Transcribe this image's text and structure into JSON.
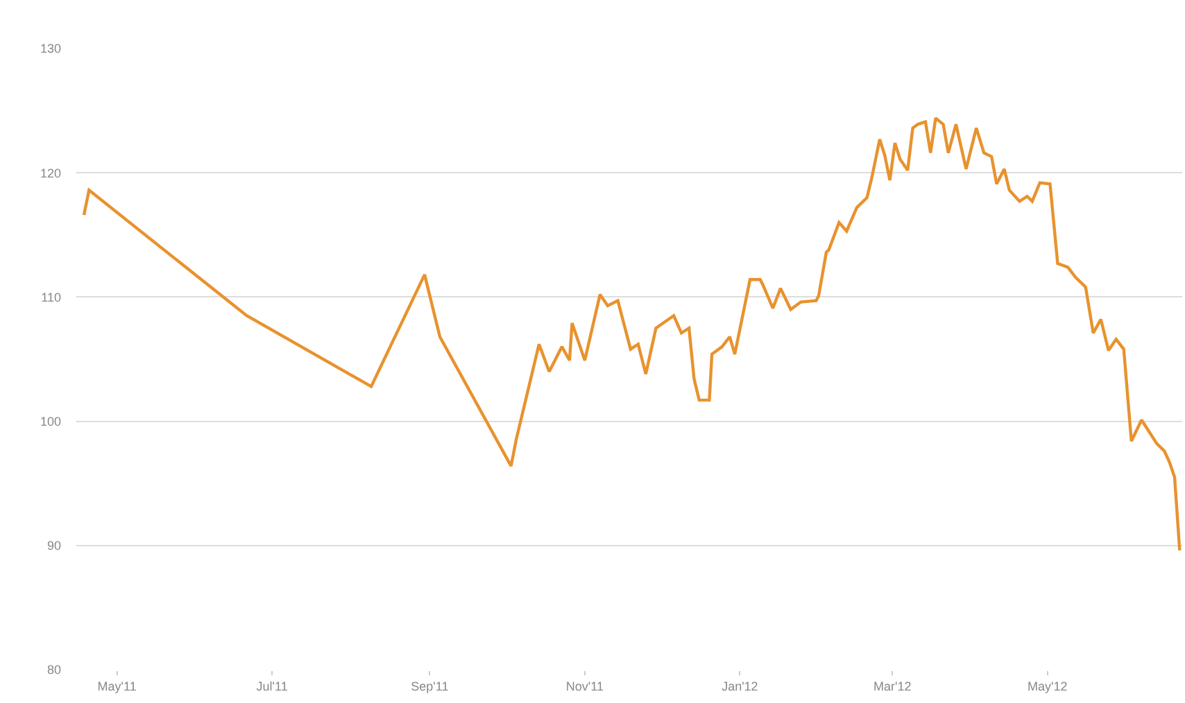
{
  "chart_data": {
    "type": "line",
    "color": "#e8922e",
    "grid": "y",
    "marker": "none",
    "line_style": "solid",
    "x": [
      "2011-04-18",
      "2011-04-20",
      "2011-06-21",
      "2011-08-09",
      "2011-08-30",
      "2011-09-05",
      "2011-10-03",
      "2011-10-05",
      "2011-10-14",
      "2011-10-18",
      "2011-10-23",
      "2011-10-26",
      "2011-10-27",
      "2011-11-01",
      "2011-11-07",
      "2011-11-10",
      "2011-11-14",
      "2011-11-19",
      "2011-11-22",
      "2011-11-25",
      "2011-11-29",
      "2011-12-06",
      "2011-12-09",
      "2011-12-12",
      "2011-12-14",
      "2011-12-16",
      "2011-12-20",
      "2011-12-21",
      "2011-12-25",
      "2011-12-28",
      "2011-12-30",
      "2012-01-05",
      "2012-01-09",
      "2012-01-10",
      "2012-01-14",
      "2012-01-17",
      "2012-01-21",
      "2012-01-25",
      "2012-01-31",
      "2012-02-01",
      "2012-02-04",
      "2012-02-05",
      "2012-02-09",
      "2012-02-12",
      "2012-02-16",
      "2012-02-20",
      "2012-02-22",
      "2012-02-25",
      "2012-02-27",
      "2012-02-29",
      "2012-03-02",
      "2012-03-04",
      "2012-03-07",
      "2012-03-09",
      "2012-03-11",
      "2012-03-14",
      "2012-03-16",
      "2012-03-18",
      "2012-03-21",
      "2012-03-23",
      "2012-03-26",
      "2012-03-30",
      "2012-04-03",
      "2012-04-06",
      "2012-04-09",
      "2012-04-11",
      "2012-04-14",
      "2012-04-16",
      "2012-04-20",
      "2012-04-23",
      "2012-04-25",
      "2012-04-28",
      "2012-05-02",
      "2012-05-05",
      "2012-05-09",
      "2012-05-12",
      "2012-05-16",
      "2012-05-19",
      "2012-05-22",
      "2012-05-25",
      "2012-05-28",
      "2012-05-31",
      "2012-06-03",
      "2012-06-07",
      "2012-06-13",
      "2012-06-16",
      "2012-06-18",
      "2012-06-20",
      "2012-06-22"
    ],
    "values": [
      116.6,
      118.6,
      108.5,
      102.8,
      111.8,
      106.8,
      96.4,
      98.5,
      106.2,
      104.0,
      106.0,
      104.9,
      107.9,
      104.9,
      110.2,
      109.3,
      109.7,
      105.8,
      106.2,
      103.8,
      107.5,
      108.5,
      107.1,
      107.5,
      103.4,
      101.7,
      101.7,
      105.4,
      106.0,
      106.8,
      105.4,
      111.4,
      111.4,
      111.0,
      109.1,
      110.7,
      109.0,
      109.6,
      109.7,
      110.1,
      113.6,
      113.8,
      116.0,
      115.3,
      117.2,
      118.0,
      119.7,
      122.7,
      121.4,
      119.4,
      122.4,
      121.1,
      120.2,
      123.6,
      123.9,
      124.1,
      121.6,
      124.4,
      123.9,
      121.6,
      123.9,
      120.3,
      123.6,
      121.6,
      121.3,
      119.1,
      120.3,
      118.6,
      117.7,
      118.1,
      117.7,
      119.2,
      119.1,
      112.7,
      112.4,
      111.6,
      110.8,
      107.1,
      108.2,
      105.7,
      106.6,
      105.8,
      98.4,
      100.1,
      98.2,
      97.6,
      96.7,
      95.5,
      89.6
    ],
    "xlim": [
      "2011-04-15",
      "2012-06-23"
    ],
    "xticks": [
      {
        "value": "2011-05-01",
        "label": "May'11"
      },
      {
        "value": "2011-07-01",
        "label": "Jul'11"
      },
      {
        "value": "2011-09-01",
        "label": "Sep'11"
      },
      {
        "value": "2011-11-01",
        "label": "Nov'11"
      },
      {
        "value": "2012-01-01",
        "label": "Jan'12"
      },
      {
        "value": "2012-03-01",
        "label": "Mar'12"
      },
      {
        "value": "2012-05-01",
        "label": "May'12"
      }
    ],
    "ylim": [
      80,
      130
    ],
    "yticks": [
      80,
      90,
      100,
      110,
      120,
      130
    ]
  }
}
